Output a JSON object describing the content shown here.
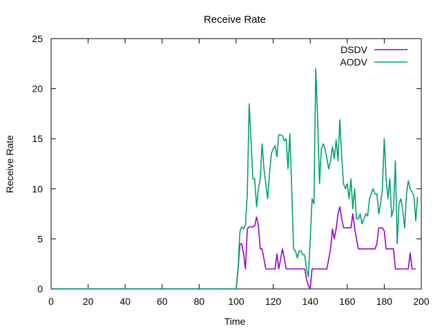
{
  "chart_data": {
    "type": "line",
    "title": "Receive Rate",
    "xlabel": "Time",
    "ylabel": "Receive Rate",
    "xlim": [
      0,
      200
    ],
    "ylim": [
      0,
      25
    ],
    "x_ticks": [
      "0",
      "20",
      "40",
      "60",
      "80",
      "100",
      "120",
      "140",
      "160",
      "180",
      "200"
    ],
    "y_ticks": [
      "0",
      "5",
      "10",
      "15",
      "20",
      "25"
    ],
    "grid": false,
    "legend_position": "top-right",
    "series": [
      {
        "name": "DSDV",
        "color": "#9400d3",
        "points": [
          [
            0,
            0
          ],
          [
            100,
            0
          ],
          [
            101,
            2
          ],
          [
            102,
            4.5
          ],
          [
            103,
            4.5
          ],
          [
            104,
            3.5
          ],
          [
            105,
            2
          ],
          [
            106,
            6
          ],
          [
            107,
            6.2
          ],
          [
            108,
            6.2
          ],
          [
            109,
            6.2
          ],
          [
            110,
            6.3
          ],
          [
            111,
            7.2
          ],
          [
            112,
            6.3
          ],
          [
            113,
            4
          ],
          [
            114,
            4
          ],
          [
            115,
            3
          ],
          [
            116,
            2
          ],
          [
            117,
            2
          ],
          [
            118,
            2
          ],
          [
            119,
            2
          ],
          [
            120,
            2
          ],
          [
            121,
            2
          ],
          [
            122,
            3.5
          ],
          [
            123,
            2
          ],
          [
            124,
            3
          ],
          [
            125,
            4
          ],
          [
            126,
            3
          ],
          [
            127,
            2
          ],
          [
            128,
            2
          ],
          [
            129,
            2
          ],
          [
            130,
            2
          ],
          [
            131,
            2
          ],
          [
            132,
            2
          ],
          [
            133,
            2
          ],
          [
            134,
            2
          ],
          [
            135,
            2
          ],
          [
            136,
            2
          ],
          [
            137,
            2
          ],
          [
            138,
            1
          ],
          [
            139,
            0.3
          ],
          [
            140,
            0
          ],
          [
            141,
            2
          ],
          [
            142,
            2
          ],
          [
            143,
            2
          ],
          [
            144,
            2
          ],
          [
            145,
            2
          ],
          [
            146,
            2
          ],
          [
            147,
            2
          ],
          [
            148,
            2
          ],
          [
            149,
            2
          ],
          [
            150,
            3
          ],
          [
            151,
            4
          ],
          [
            152,
            6
          ],
          [
            153,
            5
          ],
          [
            154,
            6
          ],
          [
            155,
            7.5
          ],
          [
            156,
            8.2
          ],
          [
            157,
            7
          ],
          [
            158,
            6.1
          ],
          [
            159,
            6.1
          ],
          [
            160,
            6.1
          ],
          [
            161,
            6.1
          ],
          [
            162,
            6.1
          ],
          [
            163,
            7.5
          ],
          [
            164,
            6.1
          ],
          [
            165,
            5
          ],
          [
            166,
            4
          ],
          [
            167,
            4
          ],
          [
            168,
            4
          ],
          [
            169,
            4
          ],
          [
            170,
            4
          ],
          [
            171,
            4
          ],
          [
            172,
            4
          ],
          [
            173,
            4
          ],
          [
            174,
            4
          ],
          [
            175,
            4
          ],
          [
            176,
            4.5
          ],
          [
            177,
            6.1
          ],
          [
            178,
            6.1
          ],
          [
            179,
            6.1
          ],
          [
            180,
            5.8
          ],
          [
            181,
            4
          ],
          [
            182,
            4
          ],
          [
            183,
            4
          ],
          [
            184,
            4
          ],
          [
            185,
            4
          ],
          [
            186,
            2
          ],
          [
            187,
            2
          ],
          [
            188,
            2
          ],
          [
            189,
            2
          ],
          [
            190,
            2
          ],
          [
            191,
            2
          ],
          [
            192,
            2
          ],
          [
            193,
            2
          ],
          [
            194,
            3.6
          ],
          [
            195,
            2
          ],
          [
            196,
            2
          ],
          [
            197,
            2
          ]
        ]
      },
      {
        "name": "AODV",
        "color": "#009e73",
        "points": [
          [
            0,
            0
          ],
          [
            100,
            0
          ],
          [
            101,
            2
          ],
          [
            102,
            5.7
          ],
          [
            103,
            6.2
          ],
          [
            104,
            6
          ],
          [
            105,
            6.4
          ],
          [
            106,
            9.5
          ],
          [
            107,
            18.5
          ],
          [
            108,
            15
          ],
          [
            109,
            11
          ],
          [
            110,
            11
          ],
          [
            111,
            8.2
          ],
          [
            112,
            10
          ],
          [
            113,
            11
          ],
          [
            114,
            14.5
          ],
          [
            115,
            12
          ],
          [
            116,
            10.5
          ],
          [
            117,
            9
          ],
          [
            118,
            11.5
          ],
          [
            119,
            13.5
          ],
          [
            120,
            14
          ],
          [
            121,
            14.3
          ],
          [
            122,
            13.2
          ],
          [
            123,
            15.4
          ],
          [
            124,
            15.4
          ],
          [
            125,
            15.3
          ],
          [
            126,
            14.8
          ],
          [
            127,
            15
          ],
          [
            128,
            12
          ],
          [
            129,
            15.5
          ],
          [
            130,
            10
          ],
          [
            131,
            4
          ],
          [
            132,
            3.8
          ],
          [
            133,
            3.1
          ],
          [
            134,
            3.8
          ],
          [
            135,
            3.8
          ],
          [
            136,
            3.4
          ],
          [
            137,
            3.4
          ],
          [
            138,
            2
          ],
          [
            139,
            1.2
          ],
          [
            140,
            5
          ],
          [
            141,
            9
          ],
          [
            142,
            8.5
          ],
          [
            143,
            22
          ],
          [
            144,
            17
          ],
          [
            145,
            10.5
          ],
          [
            146,
            14
          ],
          [
            147,
            14.5
          ],
          [
            148,
            14
          ],
          [
            149,
            13
          ],
          [
            150,
            12
          ],
          [
            151,
            12.8
          ],
          [
            152,
            14.2
          ],
          [
            153,
            13
          ],
          [
            154,
            14.9
          ],
          [
            155,
            12.8
          ],
          [
            156,
            16.9
          ],
          [
            157,
            13.2
          ],
          [
            158,
            10.5
          ],
          [
            159,
            10
          ],
          [
            160,
            10.5
          ],
          [
            161,
            9
          ],
          [
            162,
            11
          ],
          [
            163,
            8
          ],
          [
            164,
            10
          ],
          [
            165,
            7
          ],
          [
            166,
            7
          ],
          [
            167,
            7.5
          ],
          [
            168,
            6.5
          ],
          [
            169,
            7
          ],
          [
            170,
            7.5
          ],
          [
            171,
            7.3
          ],
          [
            172,
            9
          ],
          [
            173,
            9.5
          ],
          [
            174,
            10
          ],
          [
            175,
            9.5
          ],
          [
            176,
            9.5
          ],
          [
            177,
            7.5
          ],
          [
            178,
            8.5
          ],
          [
            179,
            10
          ],
          [
            180,
            15
          ],
          [
            181,
            11
          ],
          [
            182,
            9
          ],
          [
            183,
            11
          ],
          [
            184,
            7.2
          ],
          [
            185,
            8
          ],
          [
            186,
            12.8
          ],
          [
            187,
            4.5
          ],
          [
            188,
            8.5
          ],
          [
            189,
            9
          ],
          [
            190,
            7.8
          ],
          [
            191,
            6.1
          ],
          [
            192,
            9.5
          ],
          [
            193,
            10.8
          ],
          [
            194,
            10
          ],
          [
            195,
            9.7
          ],
          [
            196,
            9.3
          ],
          [
            197,
            6.8
          ],
          [
            198,
            9.2
          ]
        ]
      }
    ]
  }
}
